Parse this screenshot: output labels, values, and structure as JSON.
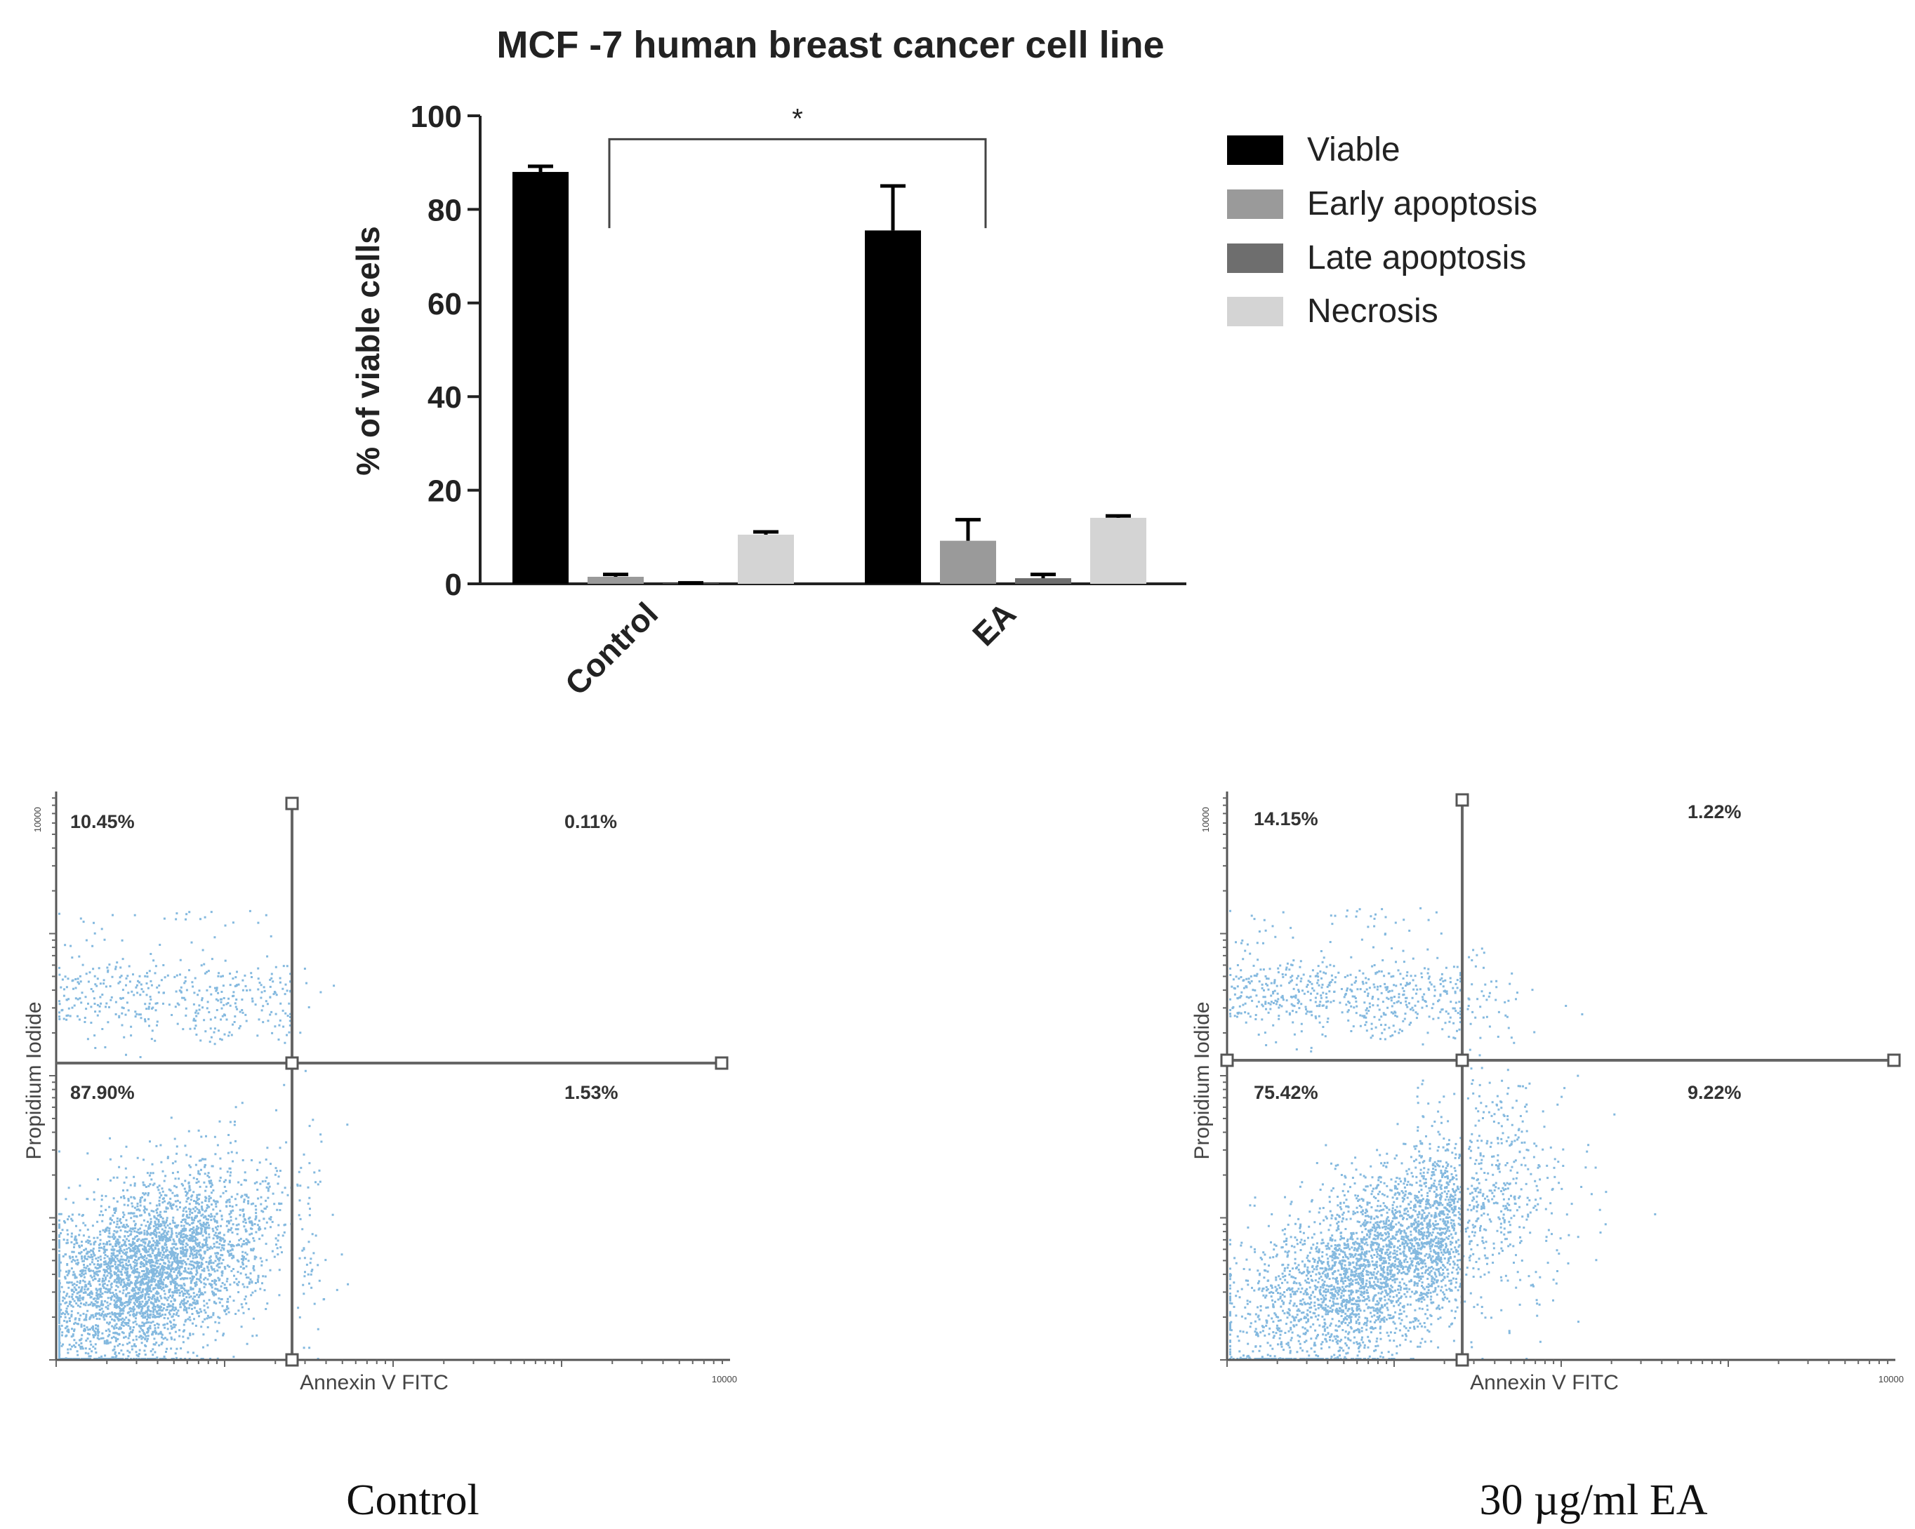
{
  "chart_data": [
    {
      "type": "bar",
      "title": "MCF -7 human breast cancer cell line",
      "ylabel": "% of viable cells",
      "xlabel": "",
      "ylim": [
        0,
        100
      ],
      "yticks": [
        0,
        20,
        40,
        60,
        80,
        100
      ],
      "categories": [
        "Control",
        "EA"
      ],
      "series": [
        {
          "name": "Viable",
          "color": "#000000",
          "values": [
            88,
            75.5
          ],
          "errors": [
            1.2,
            9.5
          ]
        },
        {
          "name": "Early apoptosis",
          "color": "#9a9a9a",
          "values": [
            1.5,
            9.2
          ],
          "errors": [
            0.5,
            4.5
          ]
        },
        {
          "name": "Late apoptosis",
          "color": "#6e6e6e",
          "values": [
            0.1,
            1.2
          ],
          "errors": [
            0.1,
            0.8
          ]
        },
        {
          "name": "Necrosis",
          "color": "#d4d4d4",
          "values": [
            10.5,
            14.1
          ],
          "errors": [
            0.6,
            0.4
          ]
        }
      ],
      "significance": {
        "label": "*",
        "from_category": 0,
        "to_category": 1,
        "y": 95,
        "drop_to": 76
      },
      "legend_position": "right"
    },
    {
      "type": "scatter",
      "title": "Control",
      "xlabel": "Annexin V FITC",
      "ylabel": "Propidium Iodide",
      "axis_max_label": "10000",
      "quadrants": {
        "upper_left": "10.45%",
        "upper_right": "0.11%",
        "lower_left": "87.90%",
        "lower_right": "1.53%"
      },
      "quadrant_fractions": {
        "upper_left": 0.1045,
        "upper_right": 0.0011,
        "lower_left": 0.879,
        "lower_right": 0.0153
      },
      "point_color": "#1f7fc4"
    },
    {
      "type": "scatter",
      "title": "30 µg/ml  EA",
      "xlabel": "Annexin V FITC",
      "ylabel": "Propidium Iodide",
      "axis_max_label": "10000",
      "quadrants": {
        "upper_left": "14.15%",
        "upper_right": "1.22%",
        "lower_left": "75.42%",
        "lower_right": "9.22%"
      },
      "quadrant_fractions": {
        "upper_left": 0.1415,
        "upper_right": 0.0122,
        "lower_left": 0.7542,
        "lower_right": 0.0922
      },
      "point_color": "#1f7fc4"
    }
  ]
}
